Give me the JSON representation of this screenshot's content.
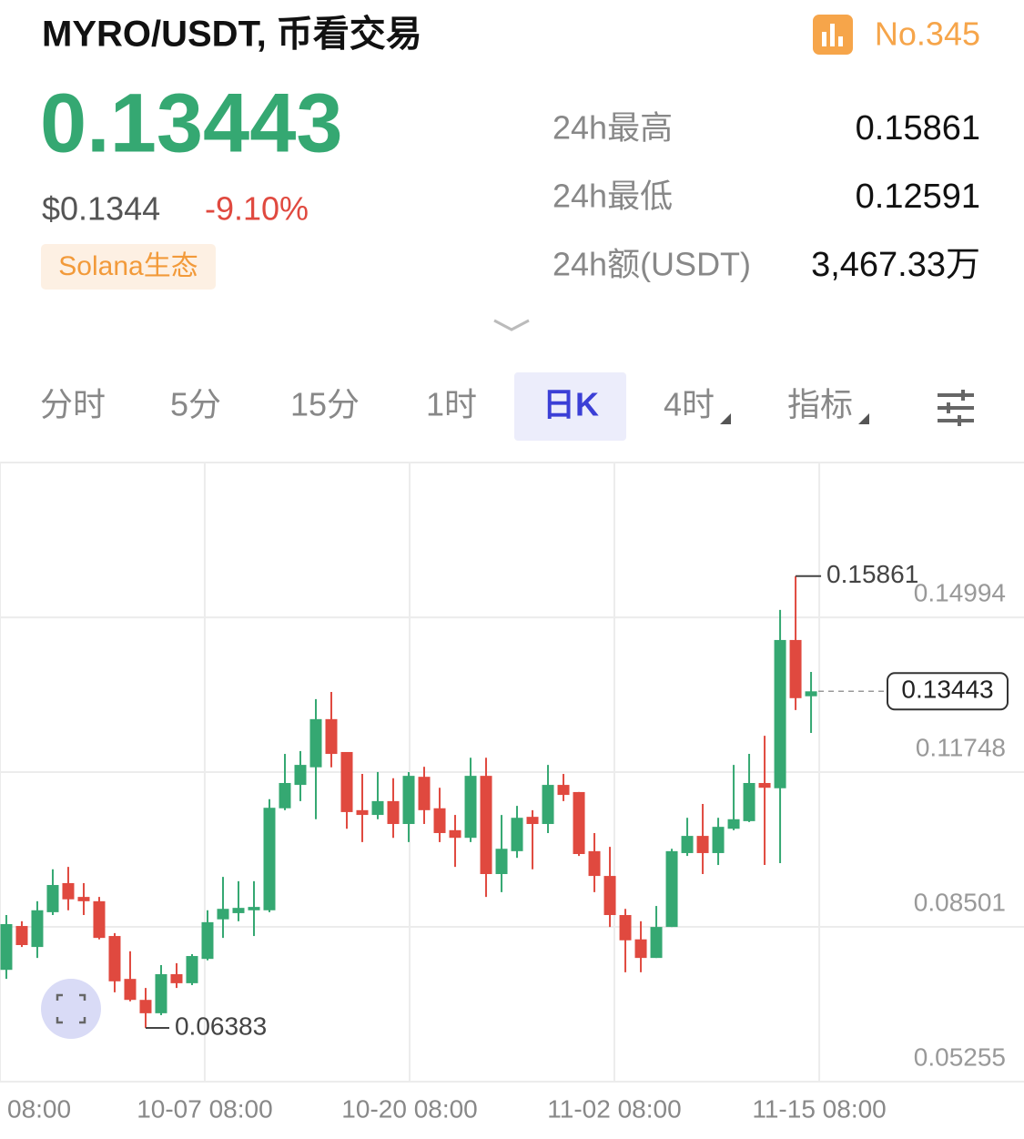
{
  "header": {
    "title": "MYRO/USDT, 币看交易",
    "rank": "No.345",
    "price": "0.13443",
    "usd_price": "$0.1344",
    "change": "-9.10%",
    "tag": "Solana生态"
  },
  "stats": [
    {
      "label": "24h最高",
      "value": "0.15861"
    },
    {
      "label": "24h最低",
      "value": "0.12591"
    },
    {
      "label": "24h额(USDT)",
      "value": "3,467.33万"
    }
  ],
  "tabs": [
    {
      "label": "分时"
    },
    {
      "label": "5分"
    },
    {
      "label": "15分"
    },
    {
      "label": "1时"
    },
    {
      "label": "日K",
      "selected": true
    },
    {
      "label": "4时",
      "dropdown": true
    },
    {
      "label": "指标",
      "dropdown": true
    }
  ],
  "chart_data": {
    "type": "candlestick",
    "x": [
      0,
      1,
      2,
      3,
      4,
      5,
      6,
      7,
      8,
      9,
      10,
      11,
      12,
      13,
      14,
      15,
      16,
      17,
      18,
      19,
      20,
      21,
      22,
      23,
      24,
      25,
      26,
      27,
      28,
      29,
      30,
      31,
      32,
      33,
      34,
      35,
      36,
      37,
      38,
      39,
      40,
      41,
      42,
      43,
      44,
      45,
      46,
      47,
      48,
      49,
      50,
      51,
      52
    ],
    "open": [
      0.076,
      0.0852,
      0.0808,
      0.0881,
      0.0942,
      0.0913,
      0.0904,
      0.0831,
      0.0741,
      0.0697,
      0.0669,
      0.0751,
      0.0732,
      0.0783,
      0.0866,
      0.0879,
      0.0885,
      0.0885,
      0.1099,
      0.1148,
      0.1185,
      0.1286,
      0.1217,
      0.1095,
      0.1085,
      0.1114,
      0.1066,
      0.1165,
      0.1099,
      0.1053,
      0.1037,
      0.1167,
      0.0961,
      0.1009,
      0.1081,
      0.1066,
      0.1148,
      0.1133,
      0.1009,
      0.0957,
      0.0875,
      0.0824,
      0.0785,
      0.085,
      0.1005,
      0.1041,
      0.1005,
      0.1056,
      0.1072,
      0.1152,
      0.1141,
      0.1452,
      0.1334
    ],
    "high": [
      0.0875,
      0.0862,
      0.0904,
      0.0971,
      0.0976,
      0.0942,
      0.0913,
      0.0837,
      0.0799,
      0.0722,
      0.077,
      0.0774,
      0.0793,
      0.0885,
      0.0955,
      0.0946,
      0.0946,
      0.1118,
      0.1213,
      0.1219,
      0.1328,
      0.1343,
      0.1217,
      0.1171,
      0.1175,
      0.1162,
      0.1175,
      0.1186,
      0.1142,
      0.1085,
      0.1205,
      0.1205,
      0.1085,
      0.1104,
      0.1095,
      0.119,
      0.1171,
      0.1133,
      0.1047,
      0.1018,
      0.0888,
      0.0862,
      0.0894,
      0.1014,
      0.1079,
      0.1108,
      0.1079,
      0.119,
      0.1213,
      0.1251,
      0.1515,
      0.15861,
      0.1385
    ],
    "low": [
      0.0741,
      0.0808,
      0.0785,
      0.0875,
      0.0885,
      0.0875,
      0.0824,
      0.0713,
      0.0694,
      0.06383,
      0.0665,
      0.0722,
      0.0728,
      0.078,
      0.0827,
      0.0862,
      0.0831,
      0.0881,
      0.1095,
      0.1114,
      0.1076,
      0.1185,
      0.1056,
      0.1028,
      0.1076,
      0.1037,
      0.1028,
      0.1066,
      0.1028,
      0.0976,
      0.1028,
      0.0913,
      0.0923,
      0.0995,
      0.0971,
      0.1047,
      0.1114,
      0.0999,
      0.0923,
      0.085,
      0.0755,
      0.0755,
      0.0785,
      0.085,
      0.0999,
      0.0961,
      0.098,
      0.1053,
      0.107,
      0.098,
      0.0984,
      0.1305,
      0.1257
    ],
    "close": [
      0.0856,
      0.0812,
      0.0885,
      0.0938,
      0.0908,
      0.0904,
      0.0827,
      0.0736,
      0.0697,
      0.0669,
      0.0751,
      0.0732,
      0.0789,
      0.086,
      0.0888,
      0.089,
      0.0892,
      0.11,
      0.1152,
      0.119,
      0.1286,
      0.1213,
      0.1091,
      0.1085,
      0.1114,
      0.1066,
      0.1167,
      0.1095,
      0.1047,
      0.1037,
      0.1167,
      0.0961,
      0.1014,
      0.1079,
      0.1066,
      0.1148,
      0.1127,
      0.1003,
      0.0957,
      0.0875,
      0.0822,
      0.0785,
      0.085,
      0.1009,
      0.1041,
      0.1005,
      0.106,
      0.1076,
      0.1152,
      0.1142,
      0.1452,
      0.133,
      0.13443
    ],
    "xlim": [
      -0.41,
      65.76
    ],
    "xticks": [
      {
        "value": -0.41,
        "label": "08:00"
      },
      {
        "value": 12.82,
        "label": "10-07 08:00"
      },
      {
        "value": 26.06,
        "label": "10-20 08:00"
      },
      {
        "value": 39.29,
        "label": "11-02 08:00"
      },
      {
        "value": 52.53,
        "label": "11-15 08:00"
      }
    ],
    "ylim": [
      0.05255,
      0.18243
    ],
    "yticks": [
      0.05255,
      0.08501,
      0.11748,
      0.14994
    ],
    "up_color": "#35a872",
    "down_color": "#e0493f",
    "grid": true
  }
}
